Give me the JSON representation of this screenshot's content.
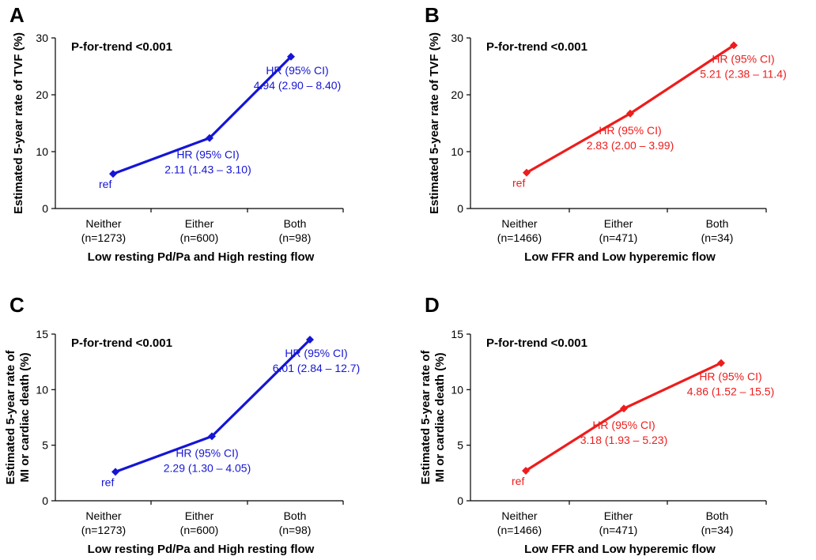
{
  "chart_data": [
    {
      "panel": "A",
      "type": "line",
      "color": "#1515d6",
      "title": "",
      "ptrend": "P-for-trend <0.001",
      "ylabel": [
        "Estimated 5-year rate of TVF (%)"
      ],
      "xlabel": "Low resting Pd/Pa and High resting flow",
      "ylim": [
        0,
        30
      ],
      "yticks": [
        "0",
        "10",
        "20",
        "30"
      ],
      "categories": [
        "Neither",
        "Either",
        "Both"
      ],
      "category_counts": [
        "(n=1273)",
        "(n=600)",
        "(n=98)"
      ],
      "values": [
        6.1,
        12.4,
        26.7
      ],
      "annotations": [
        {
          "lines": [
            "ref"
          ]
        },
        {
          "lines": [
            "HR (95% CI)",
            "2.11 (1.43 – 3.10)"
          ]
        },
        {
          "lines": [
            "HR (95% CI)",
            "4.94 (2.90 – 8.40)"
          ]
        }
      ]
    },
    {
      "panel": "B",
      "type": "line",
      "color": "#ee1c1c",
      "title": "",
      "ptrend": "P-for-trend <0.001",
      "ylabel": [
        "Estimated 5-year rate of TVF (%)"
      ],
      "xlabel": "Low FFR and Low hyperemic flow",
      "ylim": [
        0,
        30
      ],
      "yticks": [
        "0",
        "10",
        "20",
        "30"
      ],
      "categories": [
        "Neither",
        "Either",
        "Both"
      ],
      "category_counts": [
        "(n=1466)",
        "(n=471)",
        "(n=34)"
      ],
      "values": [
        6.3,
        16.7,
        28.7
      ],
      "annotations": [
        {
          "lines": [
            "ref"
          ]
        },
        {
          "lines": [
            "HR (95% CI)",
            "2.83 (2.00 – 3.99)"
          ]
        },
        {
          "lines": [
            "HR (95% CI)",
            "5.21 (2.38 – 11.4)"
          ]
        }
      ]
    },
    {
      "panel": "C",
      "type": "line",
      "color": "#1515d6",
      "title": "",
      "ptrend": "P-for-trend <0.001",
      "ylabel": [
        "Estimated 5-year rate of",
        "MI or cardiac death (%)"
      ],
      "xlabel": "Low resting Pd/Pa and High resting flow",
      "ylim": [
        0,
        15
      ],
      "yticks": [
        "0",
        "5",
        "10",
        "15"
      ],
      "categories": [
        "Neither",
        "Either",
        "Both"
      ],
      "category_counts": [
        "(n=1273)",
        "(n=600)",
        "(n=98)"
      ],
      "values": [
        2.6,
        5.8,
        14.5
      ],
      "annotations": [
        {
          "lines": [
            "ref"
          ]
        },
        {
          "lines": [
            "HR (95% CI)",
            "2.29 (1.30 – 4.05)"
          ]
        },
        {
          "lines": [
            "HR (95% CI)",
            "6.01 (2.84 – 12.7)"
          ]
        }
      ]
    },
    {
      "panel": "D",
      "type": "line",
      "color": "#ee1c1c",
      "title": "",
      "ptrend": "P-for-trend <0.001",
      "ylabel": [
        "Estimated 5-year rate of",
        "MI or cardiac death (%)"
      ],
      "xlabel": "Low FFR and Low hyperemic flow",
      "ylim": [
        0,
        15
      ],
      "yticks": [
        "0",
        "5",
        "10",
        "15"
      ],
      "categories": [
        "Neither",
        "Either",
        "Both"
      ],
      "category_counts": [
        "(n=1466)",
        "(n=471)",
        "(n=34)"
      ],
      "values": [
        2.7,
        8.3,
        12.4
      ],
      "annotations": [
        {
          "lines": [
            "ref"
          ]
        },
        {
          "lines": [
            "HR (95% CI)",
            "3.18 (1.93 – 5.23)"
          ]
        },
        {
          "lines": [
            "HR (95% CI)",
            "4.86 (1.52 – 15.5)"
          ]
        }
      ]
    }
  ]
}
